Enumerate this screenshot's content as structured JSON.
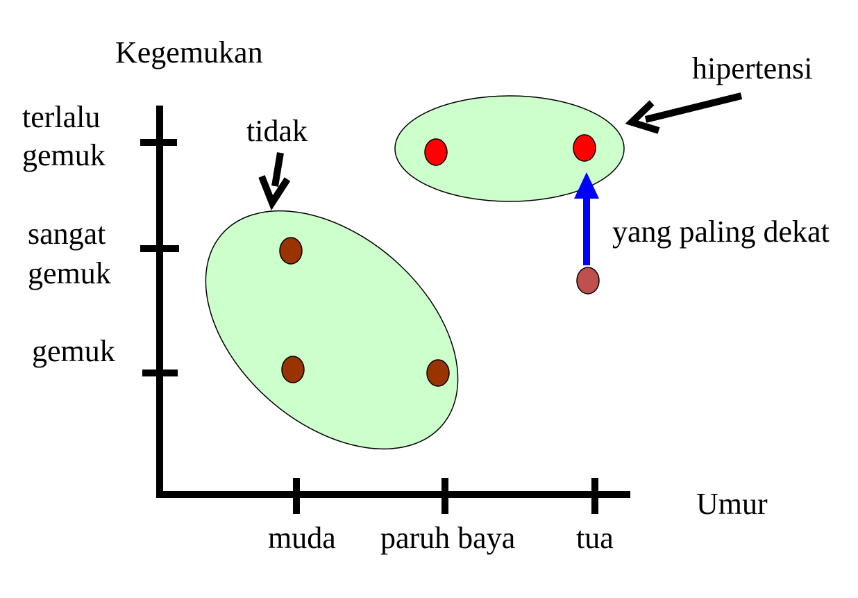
{
  "axes": {
    "y_title": "Kegemukan",
    "x_title": "Umur",
    "y_ticks": [
      {
        "line1": "terlalu",
        "line2": "gemuk"
      },
      {
        "line1": "sangat",
        "line2": "gemuk"
      },
      {
        "line1": "gemuk",
        "line2": ""
      }
    ],
    "x_ticks": [
      "muda",
      "paruh baya",
      "tua"
    ]
  },
  "annotations": {
    "class_no": "tidak",
    "class_yes": "hipertensi",
    "nearest": "yang paling dekat"
  },
  "colors": {
    "cluster_fill": "#ccffcc",
    "class_no_point": "#993300",
    "class_yes_point": "#ff0000",
    "query_point": "#c0504d",
    "nearest_arrow": "#0000ff",
    "axis": "#000000"
  },
  "points": {
    "class_no": [
      {
        "age": "muda",
        "weight": "sangat gemuk"
      },
      {
        "age": "muda",
        "weight": "gemuk"
      },
      {
        "age": "paruh baya",
        "weight": "gemuk"
      }
    ],
    "class_yes": [
      {
        "age": "paruh baya",
        "weight": "terlalu gemuk"
      },
      {
        "age": "tua",
        "weight": "terlalu gemuk"
      }
    ],
    "query": {
      "age": "tua",
      "weight": "sangat gemuk"
    }
  }
}
